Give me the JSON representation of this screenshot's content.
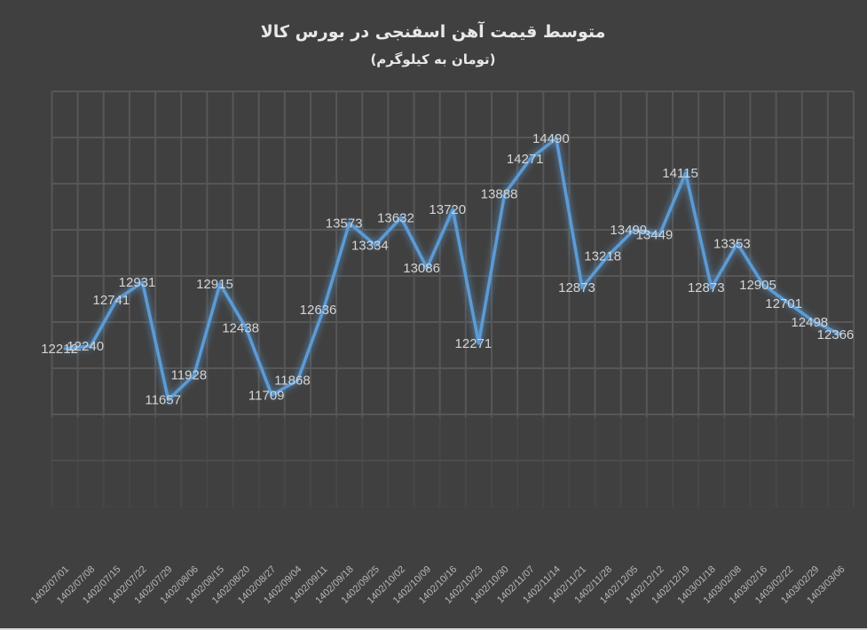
{
  "chart_data": {
    "type": "line",
    "title": "متوسط قیمت آهن اسفنجی در بورس کالا",
    "subtitle": "(تومان به کیلوگرم)",
    "xlabel": "",
    "ylabel": "",
    "ylim": [
      10500,
      15000
    ],
    "grid": true,
    "legend": "none",
    "line_color": "#5b9bd5",
    "background_color": "#404040",
    "categories": [
      "1402/07/01",
      "1402/07/08",
      "1402/07/15",
      "1402/07/22",
      "1402/07/29",
      "1402/08/06",
      "1402/08/15",
      "1402/08/20",
      "1402/08/27",
      "1402/09/04",
      "1402/09/11",
      "1402/09/18",
      "1402/09/25",
      "1402/10/02",
      "1402/10/09",
      "1402/10/16",
      "1402/10/23",
      "1402/10/30",
      "1402/11/07",
      "1402/11/14",
      "1402/11/21",
      "1402/11/28",
      "1402/12/05",
      "1402/12/12",
      "1402/12/19",
      "1403/01/18",
      "1403/02/08",
      "1403/02/16",
      "1403/02/22",
      "1403/02/29",
      "1403/03/06"
    ],
    "values": [
      12212,
      12240,
      12741,
      12931,
      11657,
      11928,
      12915,
      12438,
      11709,
      11868,
      12636,
      13573,
      13334,
      13632,
      13086,
      13720,
      12271,
      13888,
      14271,
      14490,
      12873,
      13218,
      13499,
      13449,
      14115,
      12873,
      13353,
      12905,
      12701,
      12498,
      12366
    ]
  }
}
